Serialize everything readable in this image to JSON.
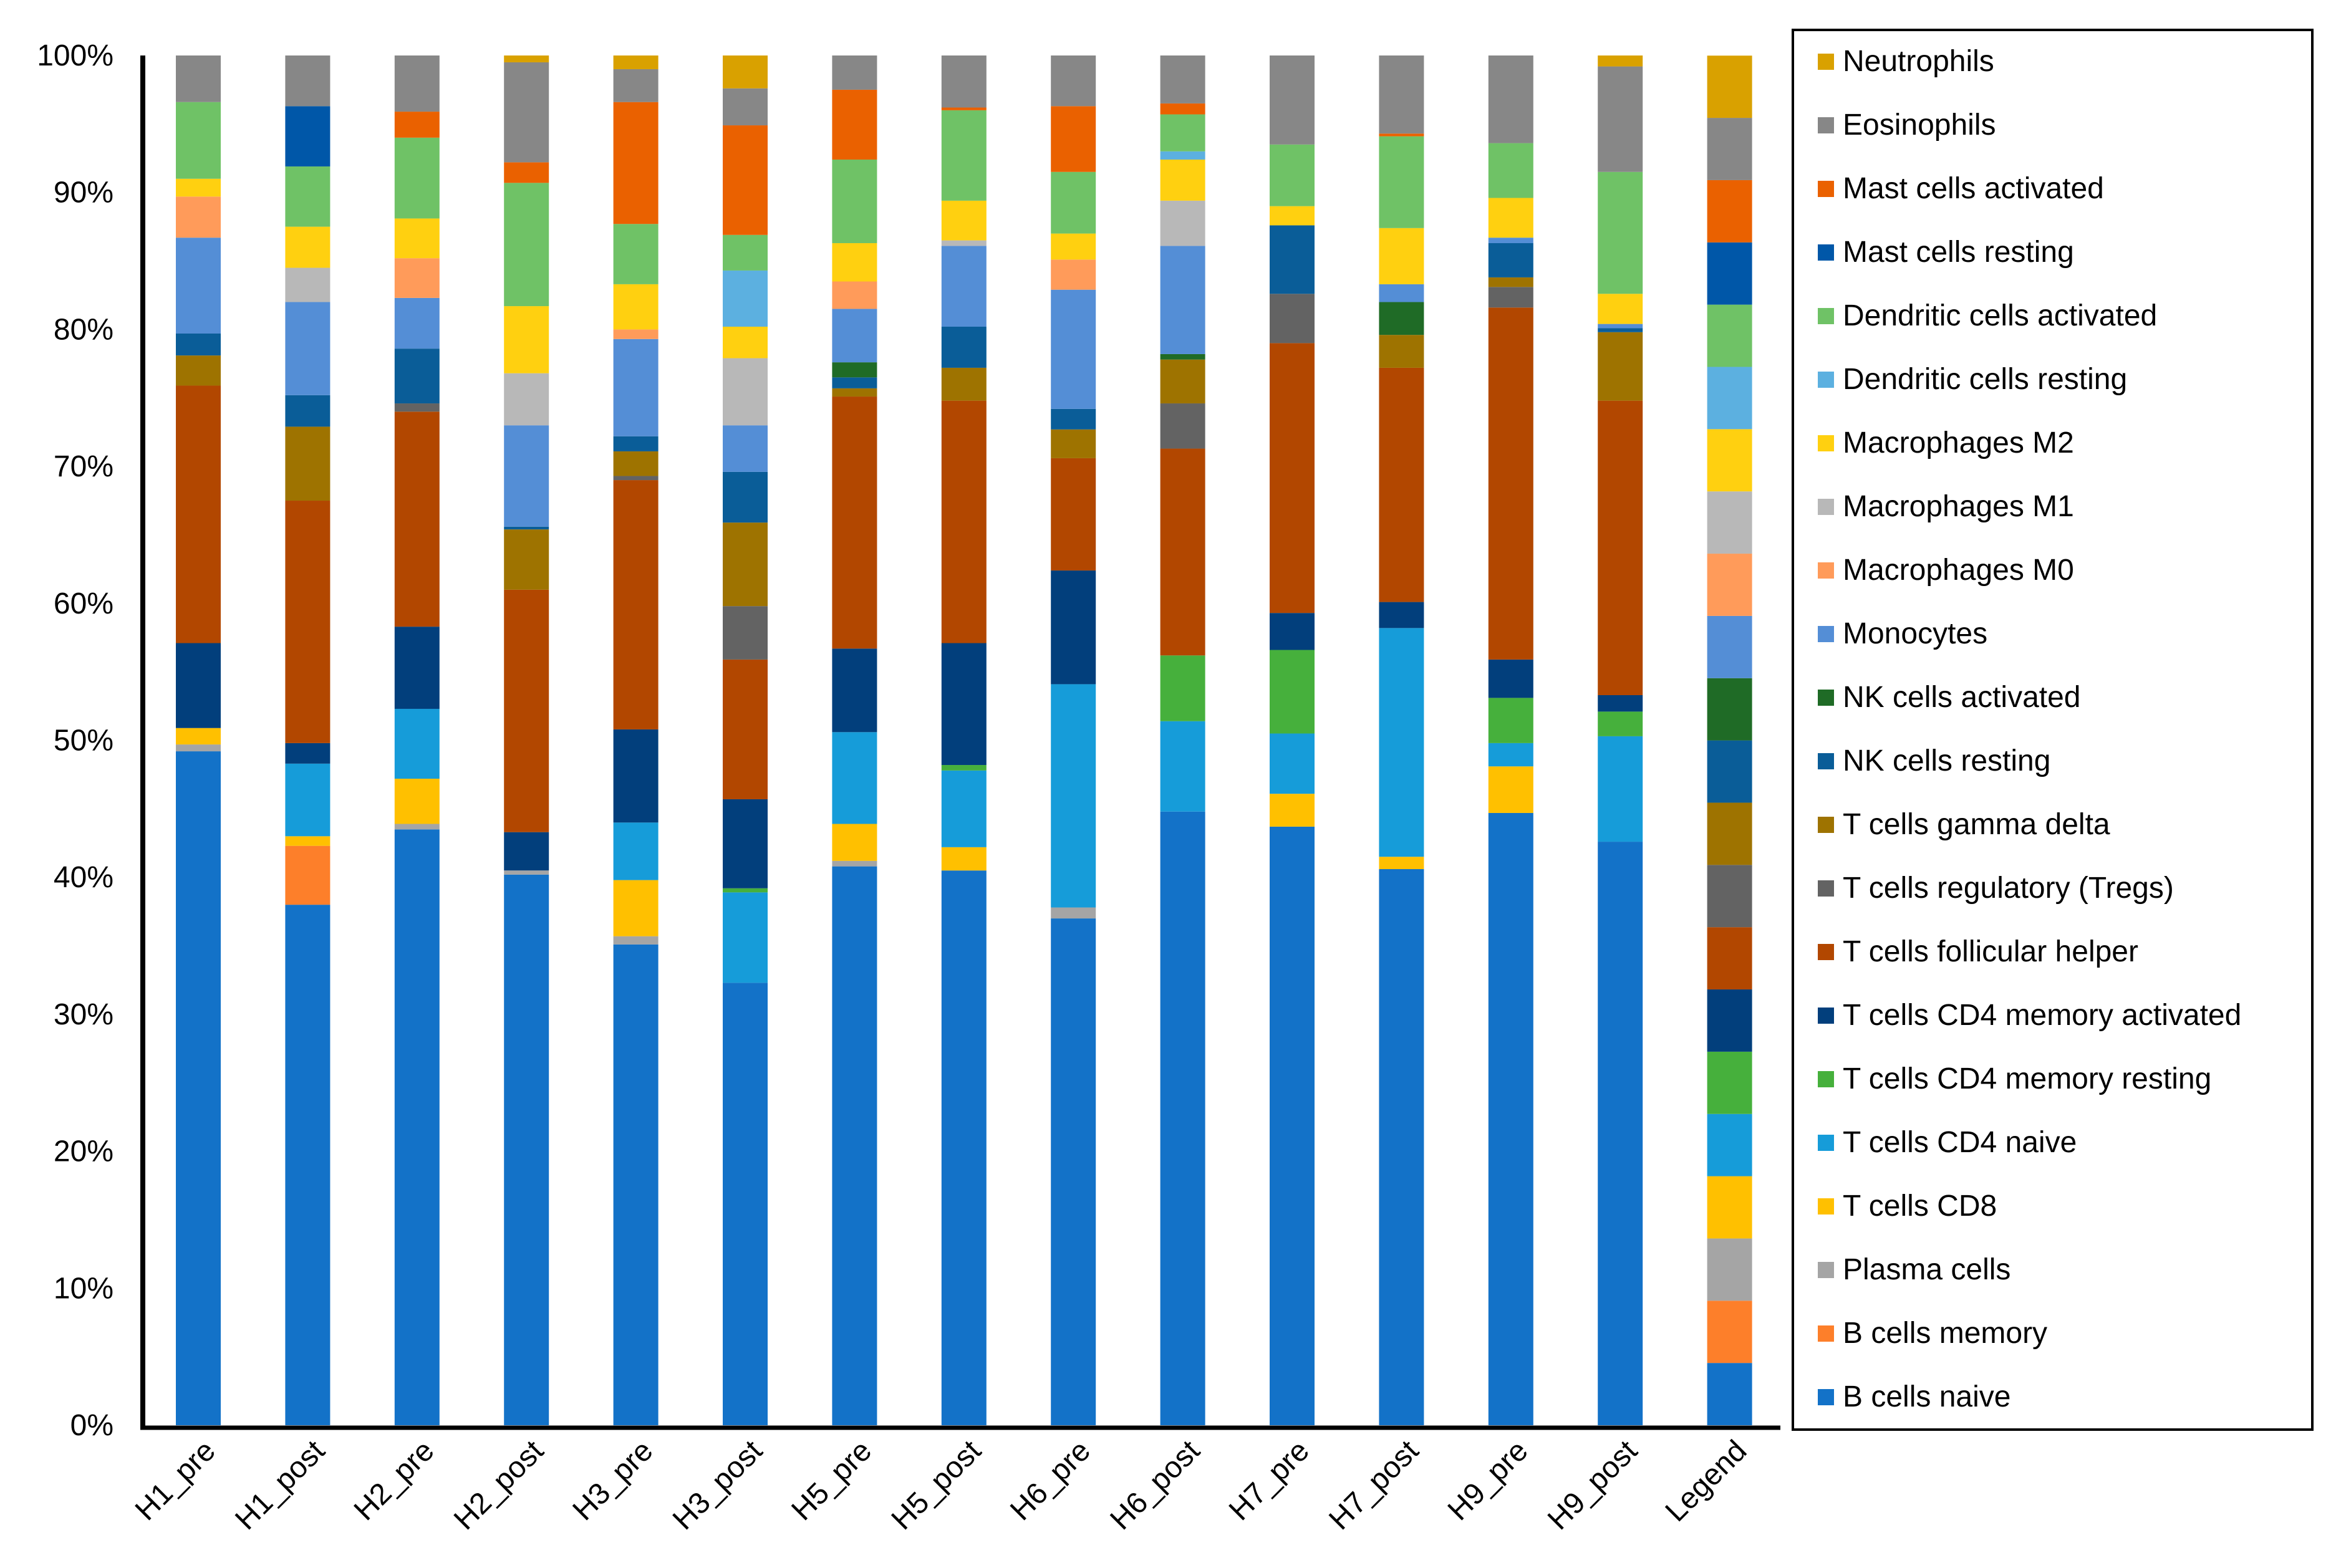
{
  "chart_data": {
    "type": "bar",
    "stacked": true,
    "title": "",
    "xlabel": "",
    "ylabel": "",
    "ylim": [
      0,
      100
    ],
    "y_ticks": [
      "0%",
      "10%",
      "20%",
      "30%",
      "40%",
      "50%",
      "60%",
      "70%",
      "80%",
      "90%",
      "100%"
    ],
    "legend_position": "right",
    "categories": [
      "H1_pre",
      "H1_post",
      "H2_pre",
      "H2_post",
      "H3_pre",
      "H3_post",
      "H5_pre",
      "H5_post",
      "H6_pre",
      "H6_post",
      "H7_pre",
      "H7_post",
      "H9_pre",
      "H9_post",
      "Legend"
    ],
    "series": [
      {
        "name": "B cells naive",
        "color": "#1372c8",
        "values": [
          49.2,
          38.0,
          43.5,
          40.2,
          35.1,
          32.3,
          40.8,
          40.5,
          37.0,
          44.8,
          43.7,
          40.6,
          44.7,
          42.6,
          4.545
        ]
      },
      {
        "name": "B cells memory",
        "color": "#fd7f2a",
        "values": [
          0,
          4.3,
          0,
          0,
          0,
          0,
          0,
          0,
          0,
          0,
          0,
          0,
          0,
          0,
          4.545
        ]
      },
      {
        "name": "Plasma cells",
        "color": "#a5a5a5",
        "values": [
          0.5,
          0,
          0.4,
          0.3,
          0.6,
          0,
          0.4,
          0,
          0.8,
          0,
          0,
          0,
          0,
          0,
          4.545
        ]
      },
      {
        "name": "T cells CD8",
        "color": "#ffc000",
        "values": [
          1.2,
          0.7,
          3.3,
          0,
          4.1,
          0,
          2.7,
          1.7,
          0,
          0,
          2.4,
          0.9,
          3.4,
          0,
          4.545
        ]
      },
      {
        "name": "T cells CD4 naive",
        "color": "#169cd9",
        "values": [
          0,
          5.3,
          5.1,
          0,
          4.2,
          6.6,
          6.7,
          5.6,
          16.3,
          6.6,
          4.4,
          16.7,
          1.7,
          7.7,
          4.545
        ]
      },
      {
        "name": "T cells CD4 memory resting",
        "color": "#46b03c",
        "values": [
          0,
          0,
          0,
          0,
          0,
          0.3,
          0,
          0.4,
          0,
          4.8,
          6.1,
          0,
          3.3,
          1.8,
          4.545
        ]
      },
      {
        "name": "T cells CD4 memory activated",
        "color": "#023f7c",
        "values": [
          6.2,
          1.5,
          6.0,
          2.8,
          6.8,
          6.5,
          6.1,
          8.9,
          8.3,
          0,
          2.7,
          1.9,
          2.8,
          1.2,
          4.545
        ]
      },
      {
        "name": "T cells follicular helper",
        "color": "#b24700",
        "values": [
          18.8,
          17.7,
          15.7,
          17.7,
          18.2,
          10.2,
          18.4,
          17.7,
          8.2,
          15.1,
          19.7,
          17.1,
          25.7,
          21.5,
          4.545
        ]
      },
      {
        "name": "T cells regulatory (Tregs)",
        "color": "#636363",
        "values": [
          0,
          0,
          0.6,
          0,
          0.3,
          3.9,
          0,
          0,
          0,
          3.3,
          3.6,
          0,
          1.5,
          0,
          4.545
        ]
      },
      {
        "name": "T cells gamma delta",
        "color": "#9e7300",
        "values": [
          2.2,
          5.4,
          0,
          4.4,
          1.8,
          6.1,
          0.6,
          2.4,
          2.1,
          3.2,
          0,
          2.4,
          0.7,
          5.0,
          4.545
        ]
      },
      {
        "name": "NK cells resting",
        "color": "#0a5d98",
        "values": [
          1.6,
          2.3,
          4.0,
          0.2,
          1.1,
          3.7,
          0.8,
          3.0,
          1.5,
          0,
          5.0,
          0,
          2.5,
          0.3,
          4.545
        ]
      },
      {
        "name": "NK cells activated",
        "color": "#1f6b26",
        "values": [
          0,
          0,
          0,
          0,
          0,
          0,
          1.1,
          0,
          0,
          0.4,
          0,
          2.4,
          0,
          0,
          4.545
        ]
      },
      {
        "name": "Monocytes",
        "color": "#548ed6",
        "values": [
          7.0,
          6.8,
          3.7,
          7.4,
          7.1,
          3.4,
          3.9,
          5.9,
          8.7,
          7.9,
          0,
          1.3,
          0.4,
          0.3,
          4.545
        ]
      },
      {
        "name": "Macrophages M0",
        "color": "#ff9b5a",
        "values": [
          3.0,
          0,
          2.9,
          0,
          0.7,
          0,
          2.0,
          0,
          2.2,
          0,
          0,
          0,
          0,
          0,
          4.545
        ]
      },
      {
        "name": "Macrophages M1",
        "color": "#b8b8b8",
        "values": [
          0,
          2.5,
          0,
          3.8,
          0,
          4.9,
          0,
          0.4,
          0,
          3.3,
          0,
          0,
          0,
          0,
          4.545
        ]
      },
      {
        "name": "Macrophages M2",
        "color": "#ffd010",
        "values": [
          1.3,
          3.0,
          2.9,
          4.9,
          3.3,
          2.3,
          2.8,
          2.9,
          1.9,
          3.0,
          1.4,
          4.1,
          2.9,
          2.2,
          4.545
        ]
      },
      {
        "name": "Dendritic cells resting",
        "color": "#5cb0e0",
        "values": [
          0,
          0,
          0,
          0,
          0,
          4.1,
          0,
          0,
          0,
          0.6,
          0,
          0,
          0,
          0,
          4.545
        ]
      },
      {
        "name": "Dendritic cells activated",
        "color": "#6fc266",
        "values": [
          5.6,
          4.4,
          5.9,
          9.0,
          4.4,
          2.6,
          6.1,
          6.6,
          4.5,
          2.7,
          4.5,
          6.7,
          4.0,
          8.9,
          4.545
        ]
      },
      {
        "name": "Mast cells resting",
        "color": "#0057a8",
        "values": [
          0,
          4.4,
          0,
          0,
          0,
          0,
          0,
          0,
          0,
          0,
          0,
          0,
          0,
          0,
          4.545
        ]
      },
      {
        "name": "Mast cells activated",
        "color": "#ea6100",
        "values": [
          0,
          0,
          1.9,
          1.5,
          8.9,
          8.0,
          5.1,
          0.2,
          4.8,
          0.8,
          0,
          0.2,
          0,
          0,
          4.545
        ]
      },
      {
        "name": "Eosinophils",
        "color": "#878787",
        "values": [
          3.4,
          3.7,
          4.1,
          7.3,
          2.4,
          2.7,
          2.5,
          3.8,
          3.7,
          3.5,
          6.5,
          5.7,
          6.4,
          7.7,
          4.545
        ]
      },
      {
        "name": "Neutrophils",
        "color": "#d9a100",
        "values": [
          0,
          0,
          0,
          0.5,
          1.0,
          2.4,
          0,
          0,
          0,
          0,
          0,
          0,
          0,
          0.8,
          4.545
        ]
      }
    ]
  }
}
